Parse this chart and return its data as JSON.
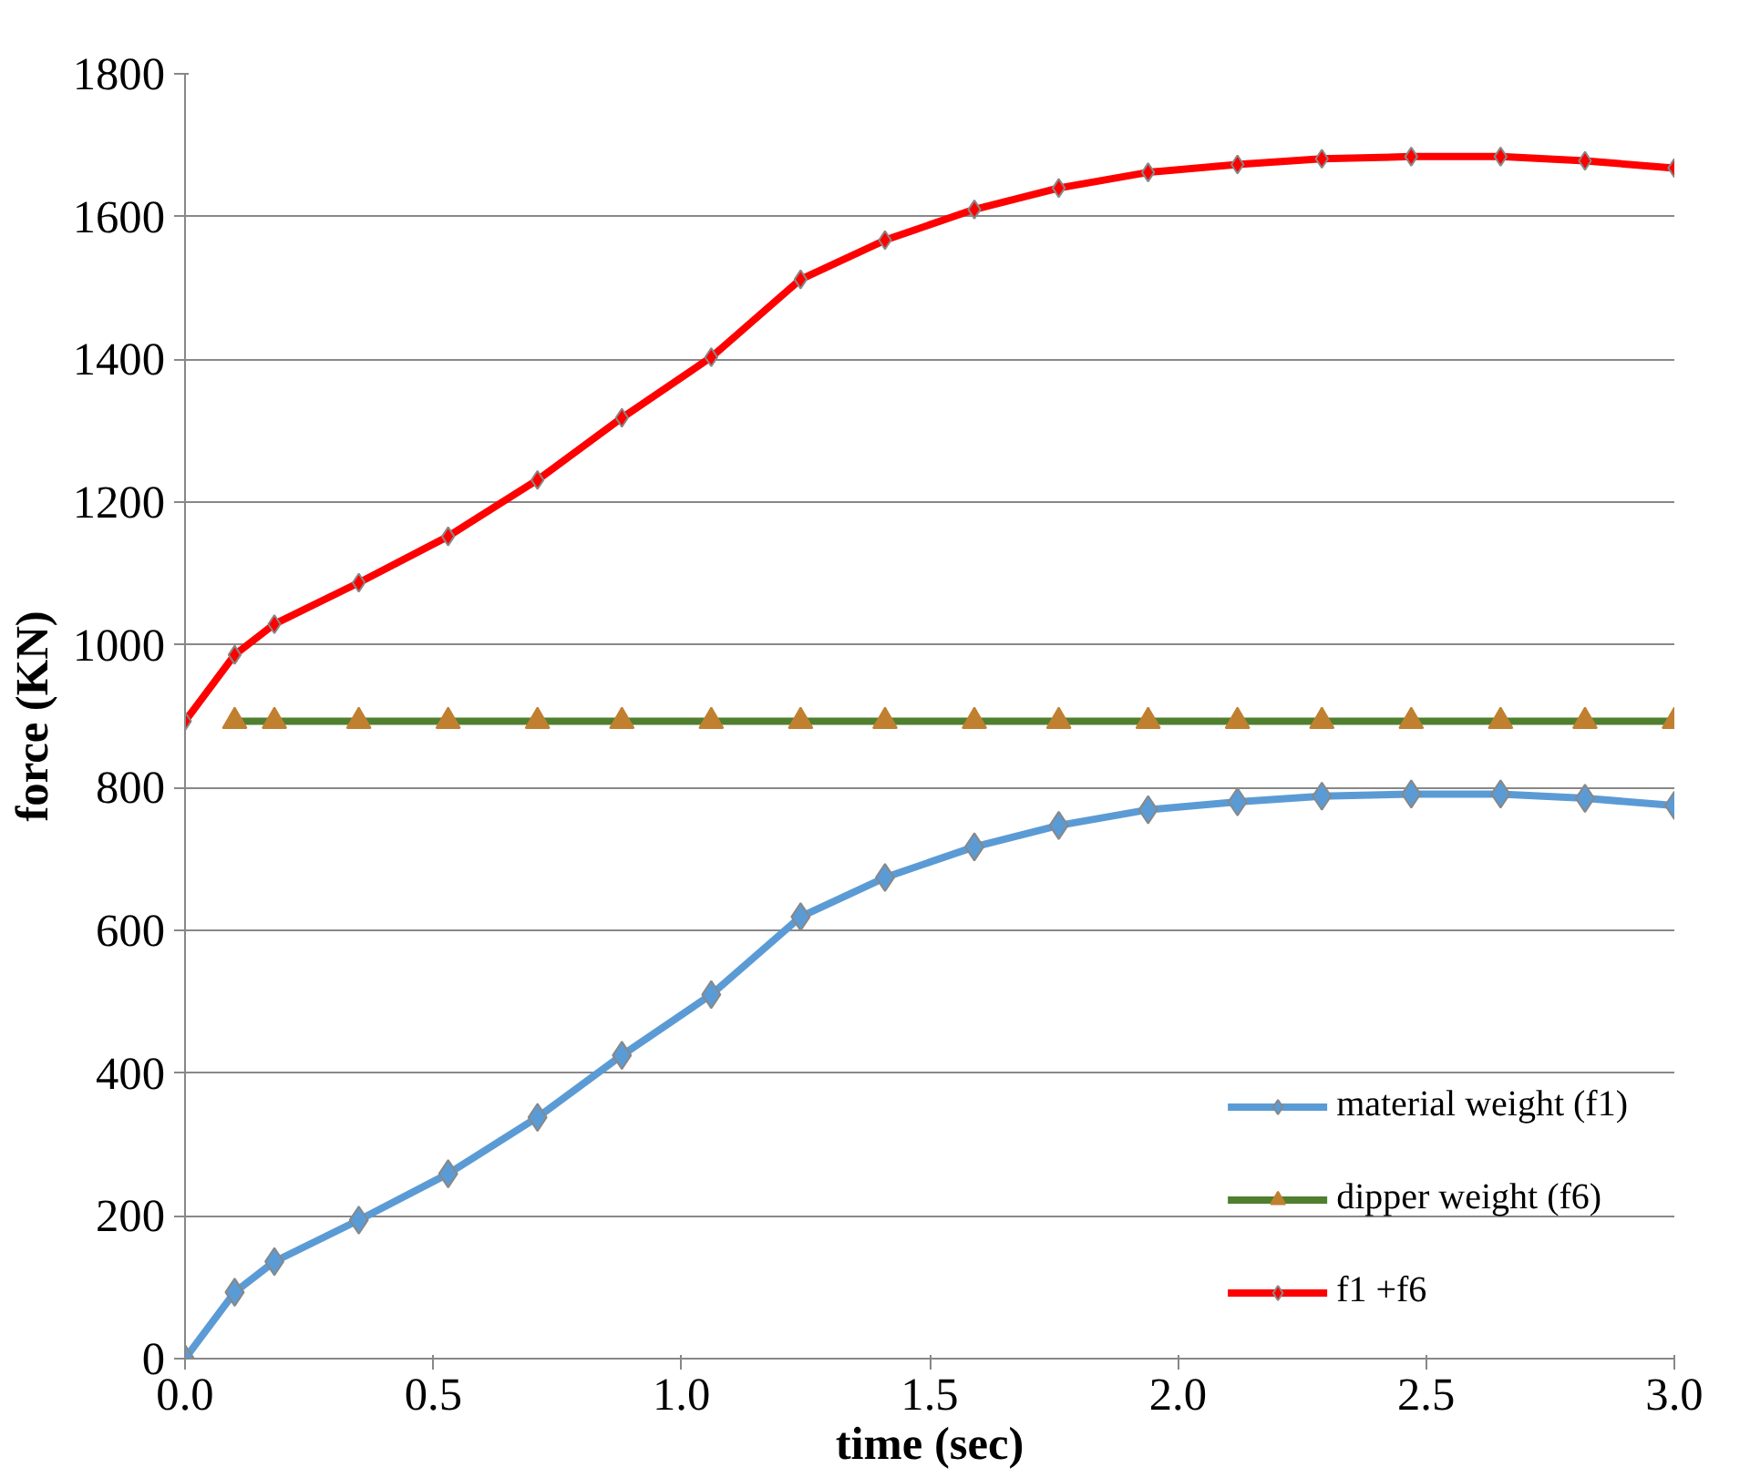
{
  "chart_data": {
    "type": "line",
    "xlabel": "time (sec)",
    "ylabel": "force (KN)",
    "x": [
      0,
      0.1,
      0.18,
      0.35,
      0.53,
      0.71,
      0.88,
      1.06,
      1.24,
      1.41,
      1.59,
      1.76,
      1.94,
      2.12,
      2.29,
      2.47,
      2.65,
      2.82,
      3.0
    ],
    "series": [
      {
        "name": "material weight (f1)",
        "color": "#5b9bd5",
        "marker": "diamond",
        "values": [
          0,
          93,
          136,
          194,
          259,
          338,
          425,
          510,
          619,
          674,
          717,
          747,
          769,
          780,
          788,
          791,
          791,
          785,
          775
        ]
      },
      {
        "name": "dipper weight (f6)",
        "color": "#4f7f2f",
        "marker": "triangle",
        "values": [
          null,
          893,
          893,
          893,
          893,
          893,
          893,
          893,
          893,
          893,
          893,
          893,
          893,
          893,
          893,
          893,
          893,
          893,
          893
        ]
      },
      {
        "name": "f1 +f6",
        "color": "#ff0000",
        "marker": "diamond",
        "values": [
          893,
          986,
          1029,
          1087,
          1152,
          1231,
          1318,
          1403,
          1512,
          1567,
          1610,
          1640,
          1662,
          1673,
          1681,
          1684,
          1684,
          1678,
          1668
        ]
      }
    ],
    "xlim": [
      0,
      3.0
    ],
    "xticks": [
      {
        "value": 0,
        "label": "0.0"
      },
      0.5,
      {
        "value": 1,
        "label": "1.0"
      },
      1.5,
      {
        "value": 2,
        "label": "2.0"
      },
      2.5,
      {
        "value": 3,
        "label": "3.0"
      }
    ],
    "ylim": [
      0,
      1800
    ],
    "yticks": [
      0,
      200,
      400,
      600,
      800,
      1000,
      1200,
      1400,
      1600,
      1800
    ],
    "grid": "y",
    "legend": "bottom right",
    "line_style": "solid"
  }
}
